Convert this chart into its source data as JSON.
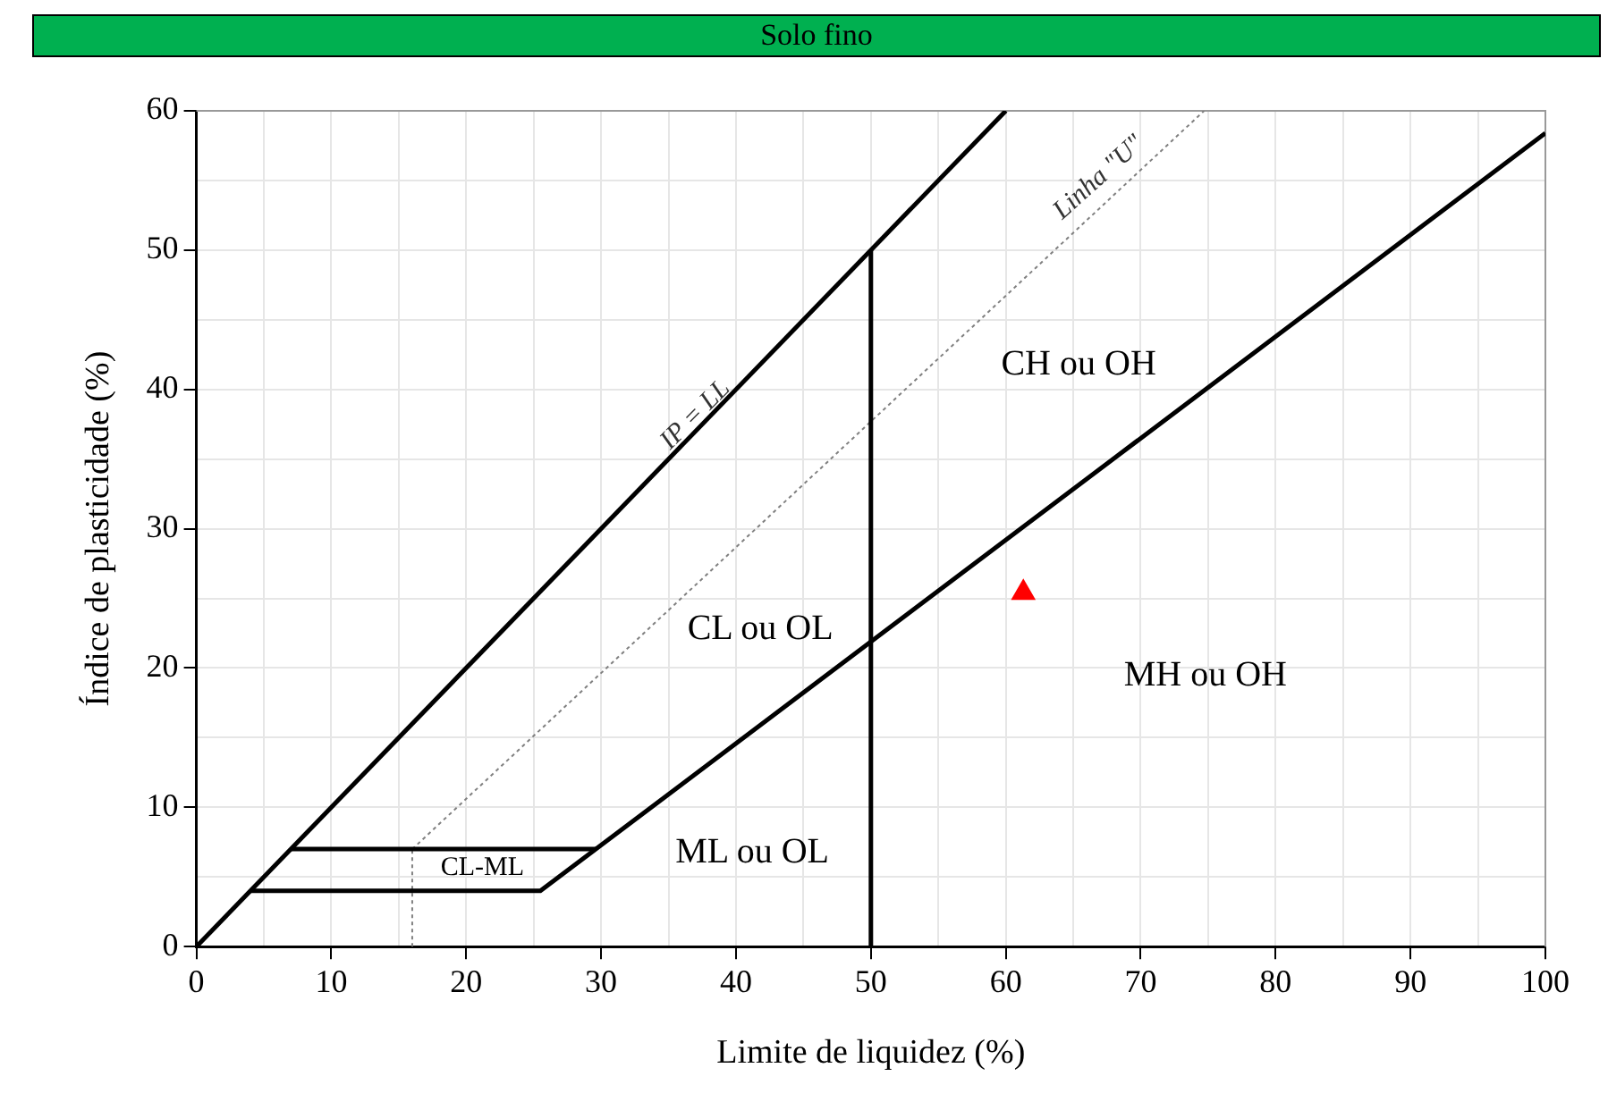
{
  "chart_data": {
    "type": "line",
    "title": "Solo fino",
    "xlabel": "Limite de liquidez (%)",
    "ylabel": "Índice de plasticidade (%)",
    "xlim": [
      0,
      100
    ],
    "ylim": [
      0,
      60
    ],
    "xticks": [
      0,
      {
        "value": 5,
        "label": null
      },
      10,
      {
        "value": 15,
        "label": null
      },
      20,
      {
        "value": 25,
        "label": null
      },
      30,
      {
        "value": 35,
        "label": null
      },
      40,
      {
        "value": 45,
        "label": null
      },
      50,
      {
        "value": 55,
        "label": null
      },
      60,
      {
        "value": 65,
        "label": null
      },
      70,
      {
        "value": 75,
        "label": null
      },
      80,
      {
        "value": 85,
        "label": null
      },
      90,
      {
        "value": 95,
        "label": null
      },
      100
    ],
    "yticks": [
      0,
      {
        "value": 5,
        "label": null
      },
      10,
      {
        "value": 15,
        "label": null
      },
      20,
      {
        "value": 25,
        "label": null
      },
      30,
      {
        "value": 35,
        "label": null
      },
      40,
      {
        "value": 45,
        "label": null
      },
      50,
      {
        "value": 55,
        "label": null
      },
      60
    ],
    "grid": true,
    "legend": false,
    "series": [
      {
        "type": "line",
        "color": "#000000",
        "line_style": "solid",
        "x": [
          0,
          60
        ],
        "values": [
          0,
          60
        ]
      },
      {
        "type": "line",
        "color": "#000000",
        "line_style": "solid",
        "x": [
          4,
          25.5,
          100
        ],
        "values": [
          4,
          4,
          58.4
        ]
      },
      {
        "type": "line",
        "color": "#000000",
        "line_style": "solid",
        "x": [
          7,
          29.6
        ],
        "values": [
          7,
          7
        ]
      },
      {
        "type": "line",
        "color": "#000000",
        "line_style": "solid",
        "x": [
          50,
          50
        ],
        "values": [
          0,
          50
        ]
      },
      {
        "type": "line",
        "color": "#808080",
        "line_style": "dotted",
        "x": [
          16,
          74.7
        ],
        "values": [
          7,
          60
        ]
      },
      {
        "type": "line",
        "color": "#808080",
        "line_style": "dotted",
        "x": [
          16,
          16
        ],
        "values": [
          0,
          7
        ]
      },
      {
        "type": "scatter",
        "color": "#ff0000",
        "marker": "triangle",
        "x": [
          61.3
        ],
        "values": [
          25.4
        ]
      }
    ],
    "annotations": [
      "IP = LL",
      "Linha \"U\"",
      "CH ou OH",
      "CL ou OL",
      "MH ou OH",
      "ML ou OL",
      "CL-ML"
    ]
  }
}
